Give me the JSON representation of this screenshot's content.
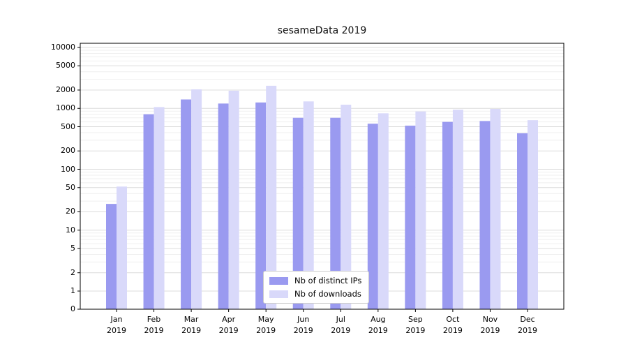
{
  "chart_data": {
    "type": "bar",
    "title": "sesameData 2019",
    "categories": [
      "Jan 2019",
      "Feb 2019",
      "Mar 2019",
      "Apr 2019",
      "May 2019",
      "Jun 2019",
      "Jul 2019",
      "Aug 2019",
      "Sep 2019",
      "Oct 2019",
      "Nov 2019",
      "Dec 2019"
    ],
    "series": [
      {
        "name": "Nb of distinct IPs",
        "color": "#9a9af0",
        "values": [
          27,
          800,
          1400,
          1200,
          1250,
          700,
          700,
          560,
          520,
          600,
          620,
          390
        ]
      },
      {
        "name": "Nb of downloads",
        "color": "#d9d9fa",
        "values": [
          52,
          1050,
          2050,
          1950,
          2350,
          1300,
          1150,
          830,
          890,
          950,
          980,
          640
        ]
      }
    ],
    "yscale": "symlog",
    "yticks": [
      0,
      1,
      2,
      5,
      10,
      20,
      50,
      100,
      200,
      500,
      1000,
      2000,
      5000,
      10000
    ],
    "ylim": [
      0,
      10000
    ],
    "xlabel": "",
    "ylabel": "",
    "grid": true,
    "legend_position": "lower center",
    "colors": {
      "major_grid": "#dcdcdc",
      "minor_grid": "#efefef",
      "axis": "#000000",
      "background": "#ffffff"
    }
  }
}
